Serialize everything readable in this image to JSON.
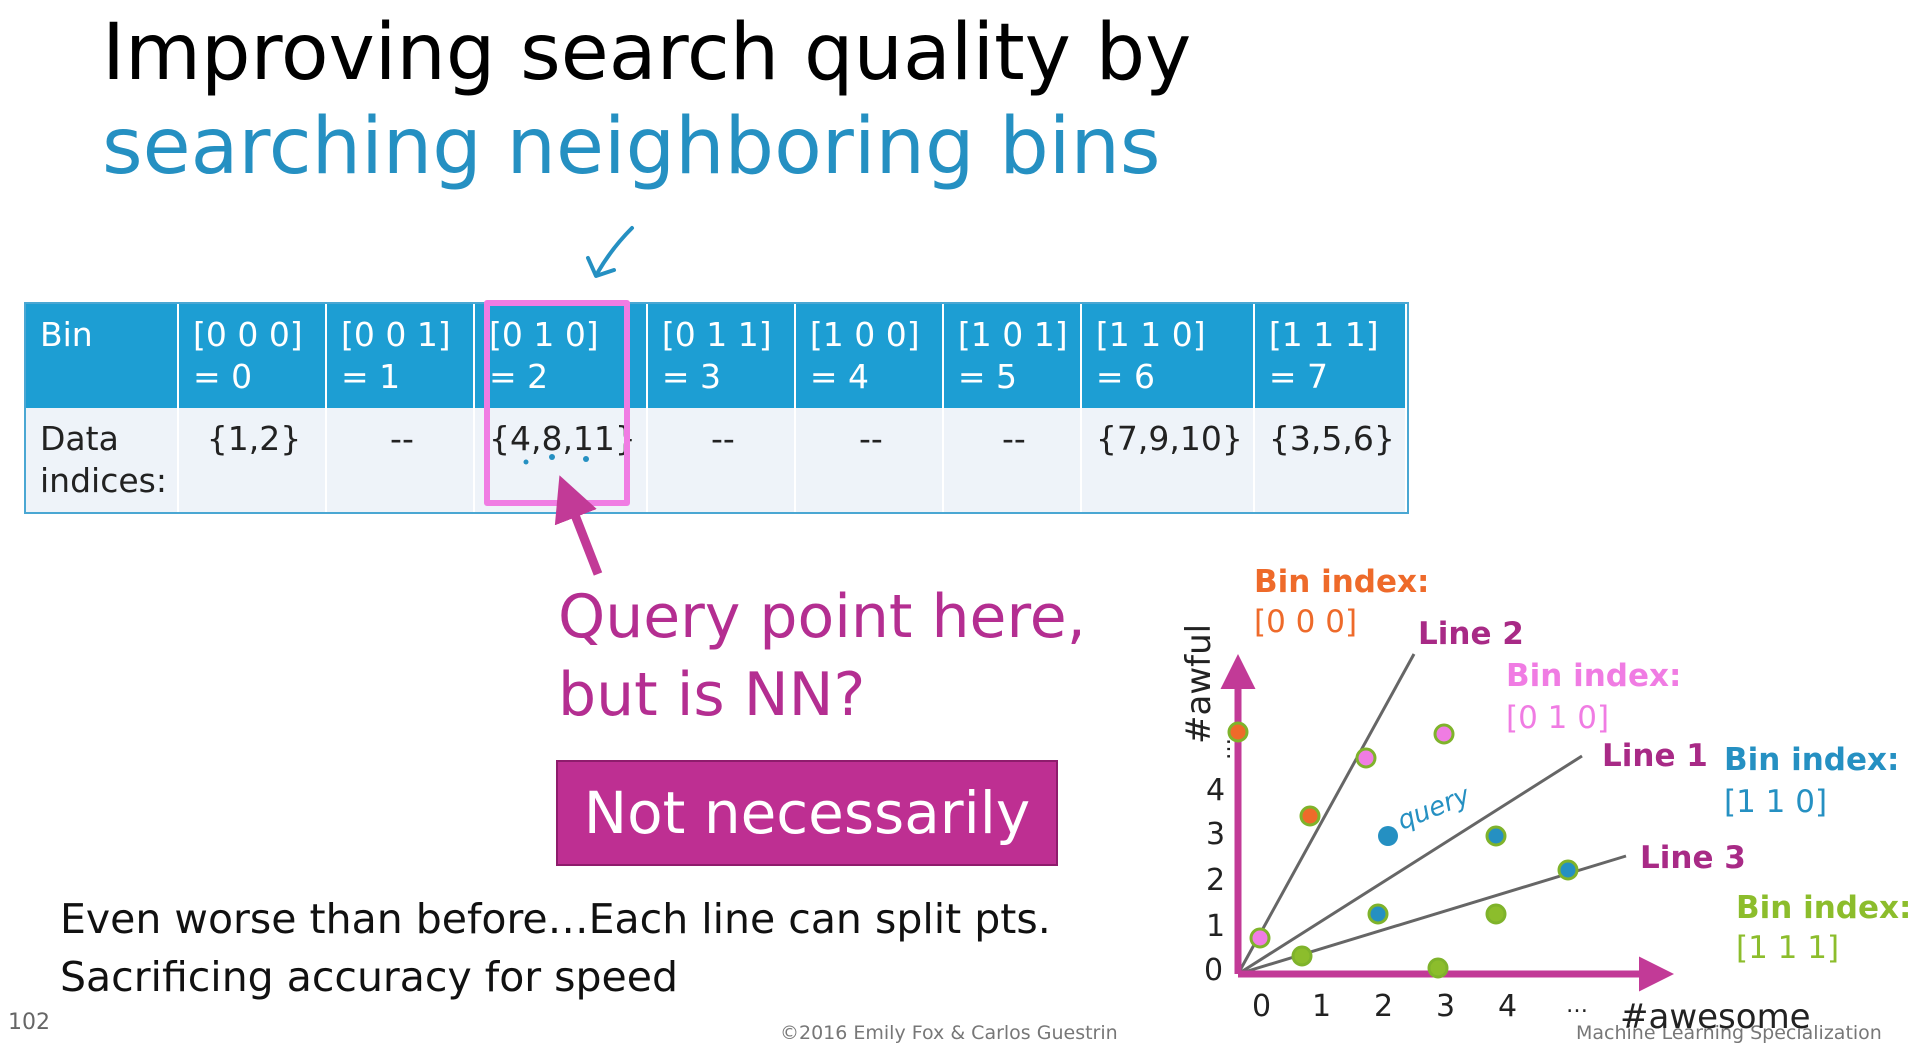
{
  "title": {
    "line1": "Improving search quality by",
    "line2": "searching neighboring bins"
  },
  "table": {
    "header_label": "Bin",
    "row_label_line1": "Data",
    "row_label_line2": "indices:",
    "bins": [
      {
        "code": "[0 0 0]",
        "value": "= 0",
        "indices": "{1,2}"
      },
      {
        "code": "[0 0 1]",
        "value": "= 1",
        "indices": "--"
      },
      {
        "code": "[0 1 0]",
        "value": "= 2",
        "indices": "{4,8,11}"
      },
      {
        "code": "[0 1 1]",
        "value": "= 3",
        "indices": "--"
      },
      {
        "code": "[1 0 0]",
        "value": "= 4",
        "indices": "--"
      },
      {
        "code": "[1 0 1]",
        "value": "= 5",
        "indices": "--"
      },
      {
        "code": "[1 1 0]",
        "value": "= 6",
        "indices": "{7,9,10}"
      },
      {
        "code": "[1 1 1]",
        "value": "= 7",
        "indices": "{3,5,6}"
      }
    ]
  },
  "callout": {
    "line1": "Query point here,",
    "line2": "but is NN?",
    "answer": "Not necessarily"
  },
  "notes": {
    "line1": "Even worse than before…Each line can split pts.",
    "line2": "Sacrificing accuracy for speed"
  },
  "plot": {
    "x_axis_label": "#awesome",
    "y_axis_label": "#awful",
    "x_ticks": [
      "0",
      "1",
      "2",
      "3",
      "4",
      "…"
    ],
    "y_ticks": [
      "0",
      "1",
      "2",
      "3",
      "4",
      "…"
    ],
    "lines": [
      "Line 1",
      "Line 2",
      "Line 3"
    ],
    "bin_labels": [
      {
        "title": "Bin index:",
        "code": "[0 0 0]",
        "color": "#ee6a2a"
      },
      {
        "title": "Bin index:",
        "code": "[0 1 0]",
        "color": "#f07ce3"
      },
      {
        "title": "Bin index:",
        "code": "[1 1 0]",
        "color": "#2590c2"
      },
      {
        "title": "Bin index:",
        "code": "[1 1 1]",
        "color": "#8cbd2c"
      }
    ],
    "query_text": "query",
    "colors": {
      "axis": "#c23a97",
      "line_label": "#a82a86",
      "point_border": "#7fb32b",
      "orange_fill": "#ee6a2a",
      "pink_fill": "#f07ce3",
      "blue_fill": "#2590c2",
      "green_fill": "#8cbd2c"
    }
  },
  "footer": {
    "slide_number": "102",
    "copyright": "©2016 Emily Fox & Carlos Guestrin",
    "specialization": "Machine Learning Specialization"
  }
}
